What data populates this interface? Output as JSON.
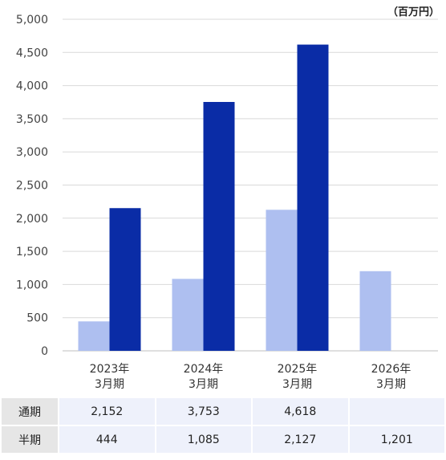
{
  "unit_label": "（百万円）",
  "chart_data": {
    "type": "bar",
    "categories": [
      "2023年\n3月期",
      "2024年\n3月期",
      "2025年\n3月期",
      "2026年\n3月期"
    ],
    "series": [
      {
        "name": "半期",
        "values": [
          444,
          1085,
          2127,
          1201
        ],
        "color": "#aebff0"
      },
      {
        "name": "通期",
        "values": [
          2152,
          3753,
          4618,
          null
        ],
        "color": "#0a2ca6"
      }
    ],
    "ylim": [
      0,
      5000
    ],
    "yticks": [
      0,
      500,
      1000,
      1500,
      2000,
      2500,
      3000,
      3500,
      4000,
      4500,
      5000
    ],
    "ytick_labels": [
      "0",
      "500",
      "1,000",
      "1,500",
      "2,000",
      "2,500",
      "3,000",
      "3,500",
      "4,000",
      "4,500",
      "5,000"
    ],
    "grid": true
  },
  "table": {
    "rows": [
      {
        "label": "通期",
        "cells": [
          "2,152",
          "3,753",
          "4,618",
          ""
        ]
      },
      {
        "label": "半期",
        "cells": [
          "444",
          "1,085",
          "2,127",
          "1,201"
        ]
      }
    ]
  }
}
